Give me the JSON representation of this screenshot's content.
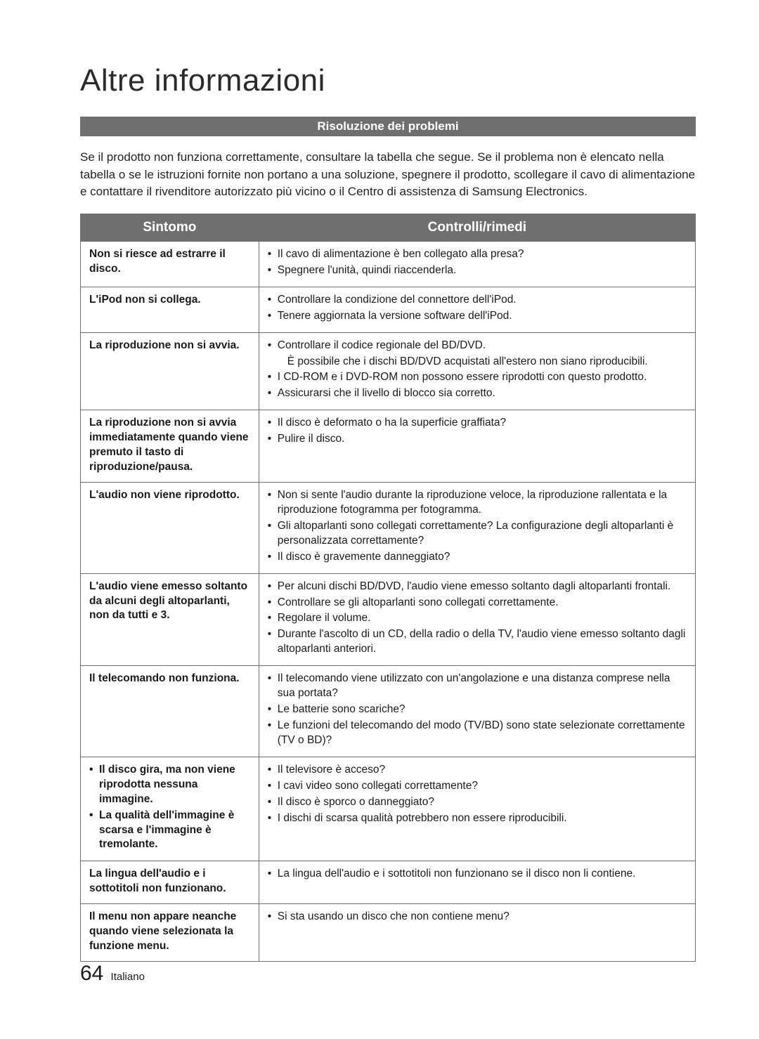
{
  "title": "Altre informazioni",
  "section_header": "Risoluzione dei problemi",
  "intro": "Se il prodotto non funziona correttamente, consultare la tabella che segue. Se il problema non è elencato nella tabella o se le istruzioni fornite non portano a una soluzione, spegnere il prodotto, scollegare il cavo di alimentazione e contattare il rivenditore autorizzato più vicino o il Centro di assistenza di Samsung Electronics.",
  "table": {
    "col_symptom": "Sintomo",
    "col_remedy": "Controlli/rimedi",
    "rows": [
      {
        "symptom_text": "Non si riesce ad estrarre il disco.",
        "remedy_items": [
          "Il cavo di alimentazione è ben collegato alla presa?",
          "Spegnere l'unità, quindi riaccenderla."
        ]
      },
      {
        "symptom_text": "L'iPod non si collega.",
        "remedy_items": [
          "Controllare la condizione del connettore dell'iPod.",
          "Tenere aggiornata la versione software dell'iPod."
        ]
      },
      {
        "symptom_text": "La riproduzione non si avvia.",
        "remedy_items": [
          "Controllare il codice regionale del BD/DVD.",
          {
            "text": "È possibile che i dischi BD/DVD acquistati all'estero non siano riproducibili.",
            "indent": true
          },
          "I CD-ROM e i DVD-ROM non possono essere riprodotti con questo prodotto.",
          "Assicurarsi che il livello di blocco sia corretto."
        ]
      },
      {
        "symptom_text": "La riproduzione non si avvia immediatamente quando viene premuto il tasto di riproduzione/pausa.",
        "remedy_items": [
          "Il disco è deformato o ha la superficie graffiata?",
          "Pulire il disco."
        ]
      },
      {
        "symptom_text": "L'audio non viene riprodotto.",
        "remedy_items": [
          "Non si sente l'audio durante la riproduzione veloce, la riproduzione rallentata e la riproduzione fotogramma per fotogramma.",
          "Gli altoparlanti sono collegati correttamente? La configurazione degli altoparlanti è personalizzata correttamente?",
          "Il disco è gravemente danneggiato?"
        ]
      },
      {
        "symptom_text": "L'audio viene emesso soltanto da alcuni degli altoparlanti, non da tutti e 3.",
        "remedy_items": [
          "Per alcuni dischi BD/DVD, l'audio viene emesso soltanto dagli altoparlanti frontali.",
          "Controllare se gli altoparlanti sono collegati correttamente.",
          "Regolare il volume.",
          "Durante l'ascolto di un CD, della radio o della TV, l'audio viene emesso soltanto dagli altoparlanti anteriori."
        ]
      },
      {
        "symptom_text": "Il telecomando non funziona.",
        "remedy_items": [
          "Il telecomando viene utilizzato con un'angolazione e una distanza comprese nella sua portata?",
          "Le batterie sono scariche?",
          "Le funzioni del telecomando del modo (TV/BD) sono state selezionate correttamente (TV o BD)?"
        ]
      },
      {
        "symptom_list": [
          "Il disco gira, ma non viene riprodotta nessuna immagine.",
          "La qualità dell'immagine è scarsa e l'immagine è tremolante."
        ],
        "remedy_items": [
          "Il televisore è acceso?",
          "I cavi video sono collegati correttamente?",
          "Il disco è sporco o danneggiato?",
          "I dischi di scarsa qualità potrebbero non essere riproducibili."
        ]
      },
      {
        "symptom_text": "La lingua dell'audio e i sottotitoli non funzionano.",
        "remedy_items": [
          "La lingua dell'audio e i sottotitoli non funzionano se il disco non li contiene."
        ]
      },
      {
        "symptom_text": "Il menu non appare neanche quando viene selezionata la funzione menu.",
        "remedy_items": [
          "Si sta usando un disco che non contiene menu?"
        ]
      }
    ]
  },
  "footer": {
    "page_number": "64",
    "language": "Italiano"
  },
  "colors": {
    "bar_bg": "#6f6f6f",
    "bar_fg": "#ffffff",
    "border": "#6f6f6f",
    "text": "#1a1a1a",
    "page_bg": "#ffffff"
  }
}
